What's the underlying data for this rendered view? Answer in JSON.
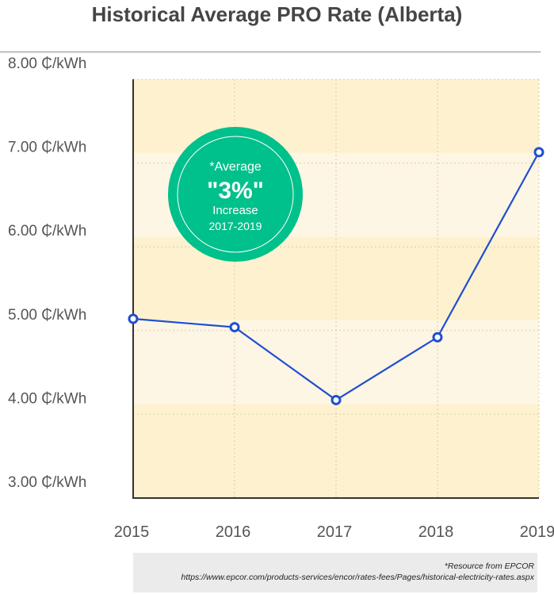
{
  "chart_data": {
    "type": "line",
    "title": "Historical Average PRO Rate (Alberta)",
    "x": [
      "2015",
      "2016",
      "2017",
      "2018",
      "2019"
    ],
    "series": [
      {
        "values": [
          5.14,
          5.04,
          4.17,
          4.92,
          7.13
        ]
      }
    ],
    "ylim": [
      3.0,
      8.0
    ],
    "yticks": [
      "3.00 ₵/kWh",
      "4.00 ₵/kWh",
      "5.00 ₵/kWh",
      "6.00 ₵/kWh",
      "7.00 ₵/kWh",
      "8.00 ₵/kWh"
    ],
    "xlabel": "",
    "ylabel": "",
    "grid": true,
    "line_color": "#1f4fd1",
    "background_bands": [
      "#fdf1cf",
      "#fdf6e4"
    ],
    "callout": {
      "line1": "*Average",
      "line2": "\"3%\"",
      "line3": "Increase",
      "line4": "2017-2019",
      "color": "#00c08b"
    }
  },
  "source": {
    "line1": "*Resource from  EPCOR",
    "line2": "https://www.epcor.com/products-services/encor/rates-fees/Pages/historical-electricity-rates.aspx"
  }
}
